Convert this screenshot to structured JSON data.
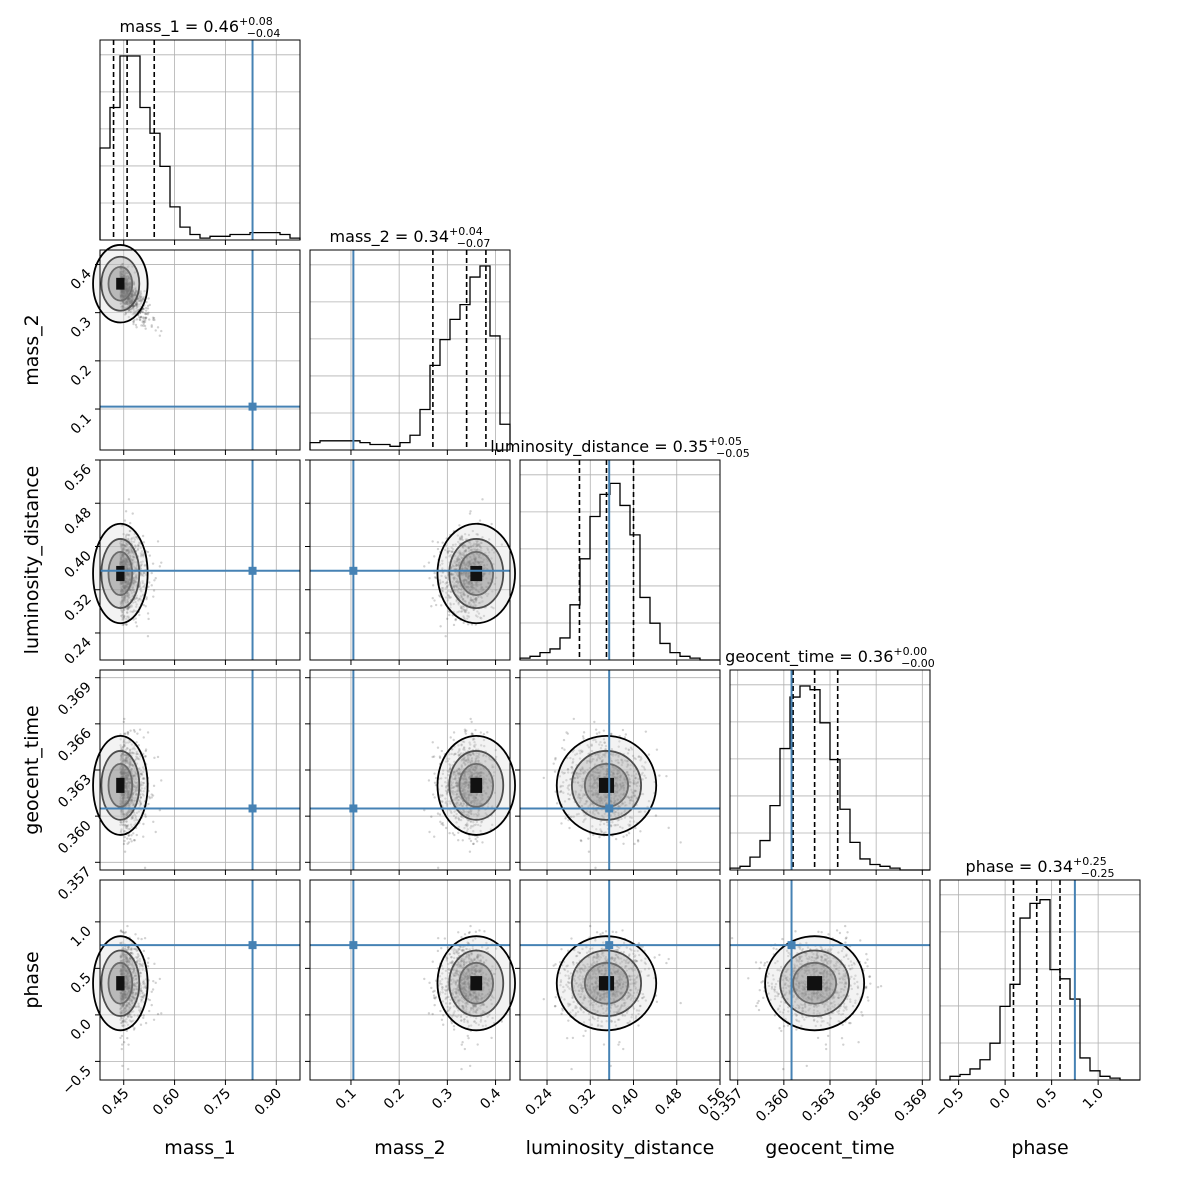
{
  "chart_data": {
    "type": "corner",
    "parameters": [
      {
        "name": "mass_1",
        "label": "mass_1",
        "range": [
          0.38,
          0.97
        ],
        "ticks": [
          0.45,
          0.6,
          0.75,
          0.9
        ],
        "tick_labels": [
          "0.45",
          "0.60",
          "0.75",
          "0.90"
        ],
        "truth": 0.83,
        "median": 0.46,
        "q_low": 0.42,
        "q_high": 0.54,
        "title_value": "0.46",
        "title_plus": "+0.08",
        "title_minus": "−0.04"
      },
      {
        "name": "mass_2",
        "label": "mass_2",
        "range": [
          0.015,
          0.43
        ],
        "ticks": [
          0.1,
          0.2,
          0.3,
          0.4
        ],
        "tick_labels": [
          "0.1",
          "0.2",
          "0.3",
          "0.4"
        ],
        "truth": 0.105,
        "median": 0.34,
        "q_low": 0.27,
        "q_high": 0.38,
        "title_value": "0.34",
        "title_plus": "+0.04",
        "title_minus": "−0.07"
      },
      {
        "name": "luminosity_distance",
        "label": "luminosity_distance",
        "range": [
          0.19,
          0.56
        ],
        "ticks": [
          0.24,
          0.32,
          0.4,
          0.48,
          0.56
        ],
        "tick_labels": [
          "0.24",
          "0.32",
          "0.40",
          "0.48",
          "0.56"
        ],
        "truth": 0.355,
        "median": 0.35,
        "q_low": 0.3,
        "q_high": 0.4,
        "title_value": "0.35",
        "title_plus": "+0.05",
        "title_minus": "−0.05"
      },
      {
        "name": "geocent_time",
        "label": "geocent_time",
        "range": [
          0.3565,
          0.3695
        ],
        "ticks": [
          0.357,
          0.36,
          0.363,
          0.366,
          0.369
        ],
        "tick_labels": [
          "0.357",
          "0.360",
          "0.363",
          "0.366",
          "0.369"
        ],
        "truth": 0.3605,
        "median": 0.362,
        "q_low": 0.3606,
        "q_high": 0.3635,
        "title_value": "0.36",
        "title_plus": "+0.00",
        "title_minus": "−0.00"
      },
      {
        "name": "phase",
        "label": "phase",
        "range": [
          -0.7,
          1.45
        ],
        "ticks": [
          -0.5,
          0.0,
          0.5,
          1.0
        ],
        "tick_labels": [
          "−0.5",
          "0.0",
          "0.5",
          "1.0"
        ],
        "truth": 0.75,
        "median": 0.34,
        "q_low": 0.09,
        "q_high": 0.59,
        "title_value": "0.34",
        "title_plus": "+0.25",
        "title_minus": "−0.25"
      }
    ],
    "histograms": [
      [
        0.5,
        0.72,
        1.0,
        1.0,
        0.72,
        0.58,
        0.4,
        0.18,
        0.07,
        0.03,
        0.01,
        0.02,
        0.02,
        0.03,
        0.03,
        0.04,
        0.04,
        0.04,
        0.03,
        0.01
      ],
      [
        0.04,
        0.05,
        0.05,
        0.05,
        0.05,
        0.04,
        0.03,
        0.03,
        0.02,
        0.04,
        0.08,
        0.22,
        0.46,
        0.6,
        0.71,
        0.79,
        0.94,
        1.0,
        0.62,
        0.14
      ],
      [
        0.01,
        0.02,
        0.04,
        0.06,
        0.12,
        0.3,
        0.55,
        0.78,
        0.9,
        0.96,
        0.84,
        0.68,
        0.34,
        0.2,
        0.09,
        0.04,
        0.02,
        0.01,
        0.0,
        0.0
      ],
      [
        0.01,
        0.02,
        0.07,
        0.16,
        0.35,
        0.66,
        0.94,
        1.0,
        0.98,
        0.8,
        0.6,
        0.33,
        0.15,
        0.06,
        0.03,
        0.02,
        0.01,
        0.0,
        0.0,
        0.0
      ],
      [
        0.0,
        0.02,
        0.03,
        0.06,
        0.11,
        0.2,
        0.4,
        0.52,
        0.88,
        0.96,
        0.98,
        0.6,
        0.55,
        0.44,
        0.12,
        0.05,
        0.02,
        0.01,
        0.0,
        0.0
      ]
    ],
    "grid": true,
    "truth_color": "#4682b4"
  }
}
